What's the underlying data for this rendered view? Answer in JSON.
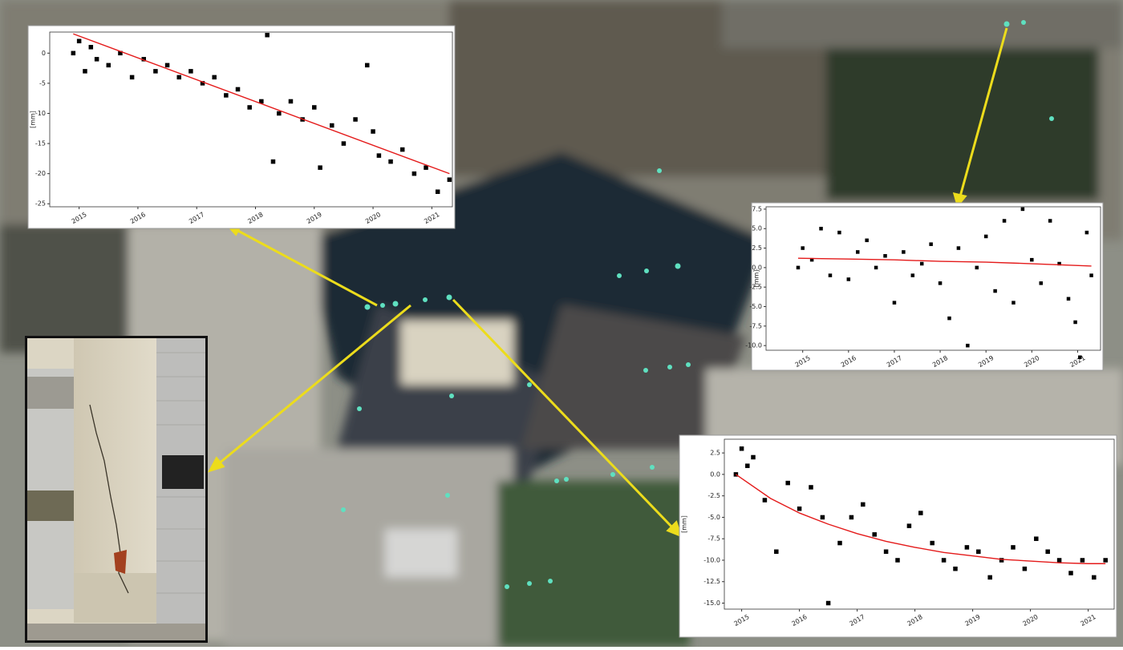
{
  "chart_data": [
    {
      "type": "scatter",
      "ylabel": "[mm]",
      "xlim": [
        2014.5,
        2021.35
      ],
      "ylim": [
        -25.5,
        3.5
      ],
      "xticks": [
        2015,
        2016,
        2017,
        2018,
        2019,
        2020,
        2021
      ],
      "yticks": [
        0,
        -5,
        -10,
        -15,
        -20,
        -25
      ],
      "points": {
        "color": "#000000",
        "x": [
          2014.9,
          2015.0,
          2015.1,
          2015.2,
          2015.3,
          2015.5,
          2015.7,
          2015.9,
          2016.1,
          2016.3,
          2016.5,
          2016.7,
          2016.9,
          2017.1,
          2017.3,
          2017.5,
          2017.7,
          2017.9,
          2018.1,
          2018.2,
          2018.3,
          2018.4,
          2018.6,
          2018.8,
          2019.0,
          2019.1,
          2019.3,
          2019.5,
          2019.7,
          2019.9,
          2020.0,
          2020.1,
          2020.3,
          2020.5,
          2020.7,
          2020.9,
          2021.1,
          2021.3
        ],
        "values": [
          0,
          2,
          -3,
          1,
          -1,
          -2,
          0,
          -4,
          -1,
          -3,
          -2,
          -4,
          -3,
          -5,
          -4,
          -7,
          -6,
          -9,
          -8,
          3,
          -18,
          -10,
          -8,
          -11,
          -9,
          -19,
          -12,
          -15,
          -11,
          -2,
          -13,
          -17,
          -18,
          -16,
          -20,
          -19,
          -23,
          -21
        ]
      },
      "trend": {
        "color": "#e41a1a",
        "x": [
          2014.9,
          2021.3
        ],
        "values": [
          3.2,
          -20
        ]
      }
    },
    {
      "type": "scatter",
      "ylabel": "[mm]",
      "xlim": [
        2014.2,
        2021.5
      ],
      "ylim": [
        -10.6,
        7.8
      ],
      "xticks": [
        2015,
        2016,
        2017,
        2018,
        2019,
        2020,
        2021
      ],
      "yticks": [
        7.5,
        {
          "value": 5,
          "label": "5.0"
        },
        2.5,
        {
          "value": 0,
          "label": "0.0"
        },
        -2.5,
        {
          "value": -5,
          "label": "-5.0"
        },
        -7.5,
        {
          "value": -10,
          "label": "-10.0"
        }
      ],
      "points": {
        "color": "#000000",
        "x": [
          2014.9,
          2015.0,
          2015.2,
          2015.4,
          2015.6,
          2015.8,
          2016.0,
          2016.2,
          2016.4,
          2016.6,
          2016.8,
          2017.0,
          2017.2,
          2017.4,
          2017.6,
          2017.8,
          2018.0,
          2018.2,
          2018.4,
          2018.6,
          2018.8,
          2019.0,
          2019.2,
          2019.4,
          2019.6,
          2019.8,
          2020.0,
          2020.2,
          2020.4,
          2020.6,
          2020.8,
          2020.95,
          2021.05,
          2021.2,
          2021.3
        ],
        "values": [
          0,
          2.5,
          1,
          5,
          -1,
          4.5,
          -1.5,
          2,
          3.5,
          0,
          1.5,
          -4.5,
          2,
          -1,
          0.5,
          3,
          -2,
          -6.5,
          2.5,
          -10,
          0,
          4,
          -3,
          6,
          -4.5,
          7.5,
          1,
          -2,
          6,
          0.5,
          -4,
          -7,
          -11.5,
          4.5,
          -1
        ]
      },
      "trend": {
        "color": "#e41a1a",
        "x": [
          2014.9,
          2016,
          2017,
          2018,
          2019,
          2020,
          2021.3
        ],
        "values": [
          1.2,
          1.1,
          1.0,
          0.8,
          0.7,
          0.5,
          0.2
        ]
      }
    },
    {
      "type": "scatter",
      "ylabel": "[mm]",
      "xlim": [
        2014.7,
        2021.45
      ],
      "ylim": [
        -15.7,
        4.1
      ],
      "xticks": [
        2015,
        2016,
        2017,
        2018,
        2019,
        2020,
        2021
      ],
      "yticks": [
        2.5,
        {
          "value": 0,
          "label": "0.0"
        },
        -2.5,
        {
          "value": -5,
          "label": "-5.0"
        },
        -7.5,
        {
          "value": -10,
          "label": "-10.0"
        },
        -12.5,
        {
          "value": -15,
          "label": "-15.0"
        }
      ],
      "points": {
        "color": "#000000",
        "x": [
          2014.9,
          2015.0,
          2015.1,
          2015.2,
          2015.4,
          2015.6,
          2015.8,
          2016.0,
          2016.2,
          2016.4,
          2016.5,
          2016.7,
          2016.9,
          2017.1,
          2017.3,
          2017.5,
          2017.7,
          2017.9,
          2018.1,
          2018.3,
          2018.5,
          2018.7,
          2018.9,
          2019.1,
          2019.3,
          2019.5,
          2019.7,
          2019.9,
          2020.1,
          2020.3,
          2020.5,
          2020.7,
          2020.9,
          2021.1,
          2021.3
        ],
        "values": [
          0,
          3,
          1,
          2,
          -3,
          -9,
          -1,
          -4,
          -1.5,
          -5,
          -15,
          -8,
          -5,
          -3.5,
          -7,
          -9,
          -10,
          -6,
          -4.5,
          -8,
          -10,
          -11,
          -8.5,
          -9,
          -12,
          -10,
          -8.5,
          -11,
          -7.5,
          -9,
          -10,
          -11.5,
          -10,
          -12,
          -10
        ]
      },
      "trend": {
        "color": "#e41a1a",
        "x": [
          2014.9,
          2015.5,
          2016,
          2016.5,
          2017,
          2017.5,
          2018,
          2018.5,
          2019,
          2019.5,
          2020,
          2020.5,
          2021,
          2021.3
        ],
        "values": [
          0,
          -2.8,
          -4.5,
          -5.8,
          -6.9,
          -7.8,
          -8.5,
          -9.1,
          -9.5,
          -9.9,
          -10.1,
          -10.3,
          -10.4,
          -10.4
        ]
      }
    }
  ]
}
